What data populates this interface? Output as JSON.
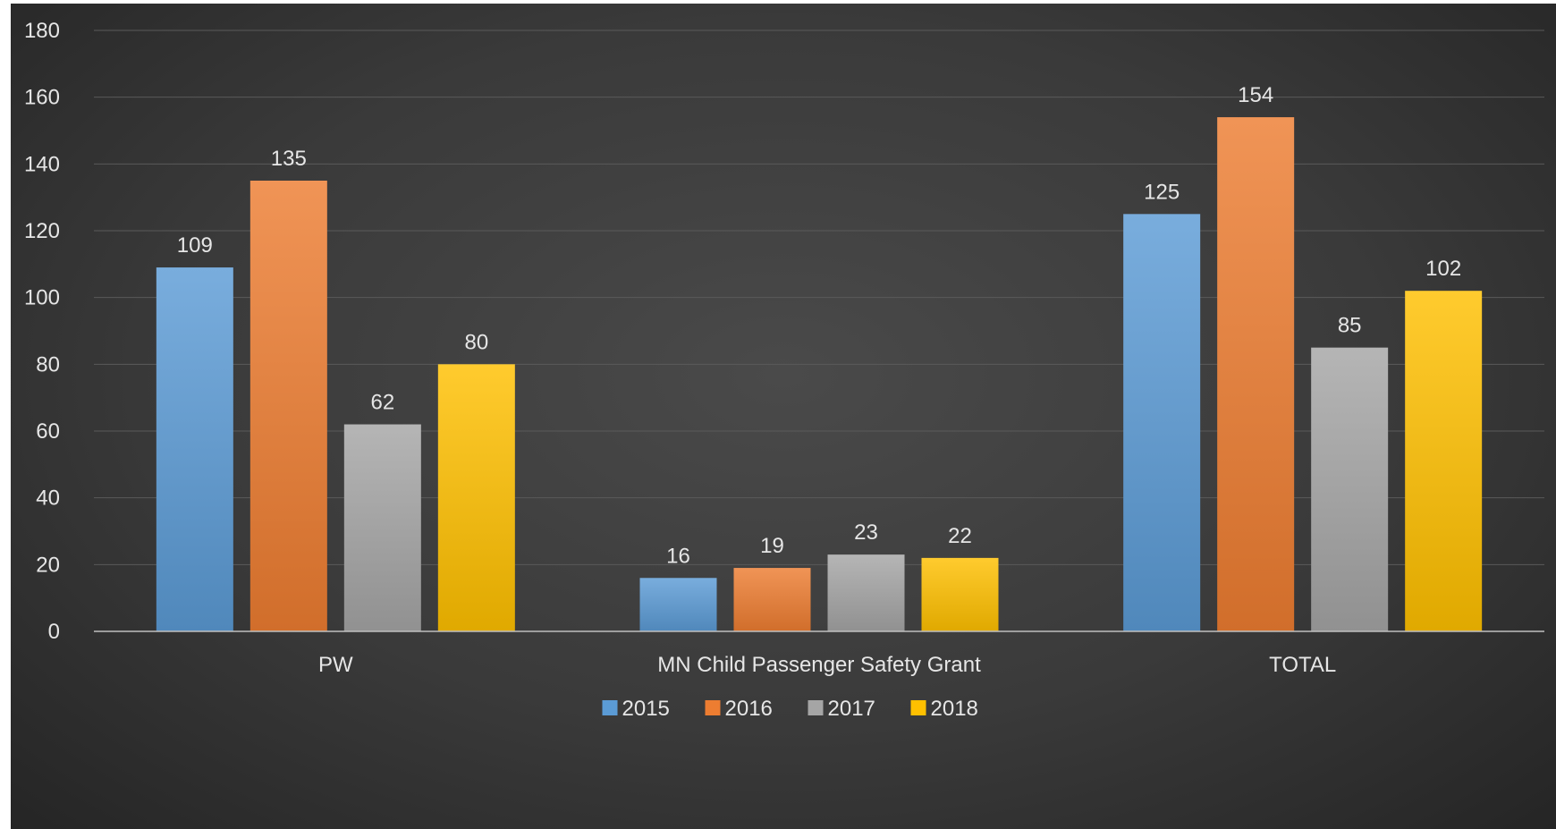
{
  "chart_data": {
    "type": "bar",
    "categories": [
      "PW",
      "MN Child Passenger Safety Grant",
      "TOTAL"
    ],
    "series": [
      {
        "name": "2015",
        "values": [
          109,
          16,
          125
        ],
        "color": "#5b9bd5"
      },
      {
        "name": "2016",
        "values": [
          135,
          19,
          154
        ],
        "color": "#ed7d31"
      },
      {
        "name": "2017",
        "values": [
          62,
          23,
          85
        ],
        "color": "#a5a5a5"
      },
      {
        "name": "2018",
        "values": [
          80,
          22,
          102
        ],
        "color": "#ffc000"
      }
    ],
    "ylim": [
      0,
      180
    ],
    "yticks": [
      0,
      20,
      40,
      60,
      80,
      100,
      120,
      140,
      160,
      180
    ],
    "grid": true,
    "legend_position": "bottom",
    "data_labels": true
  },
  "colors": {
    "background": "#3f3f3f",
    "text": "#e6e6e6",
    "gridline": "#5a5a5a",
    "axis": "#bfbfbf"
  }
}
